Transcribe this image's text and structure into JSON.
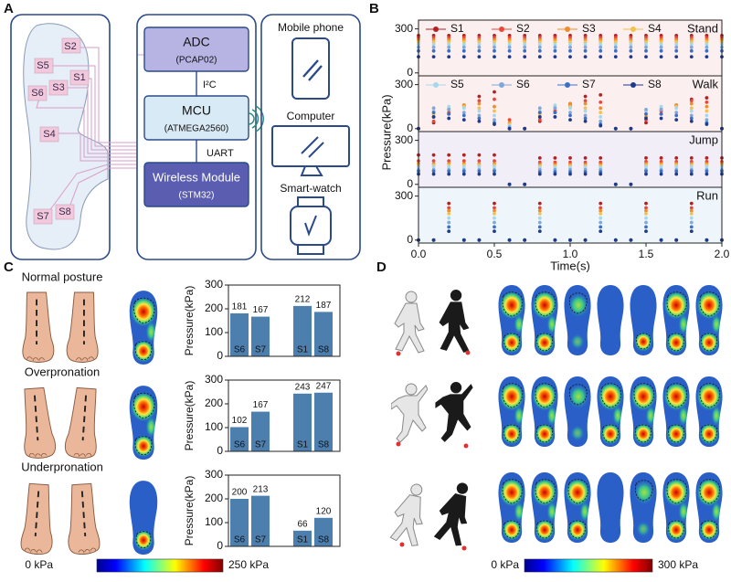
{
  "panels": {
    "a": "A",
    "b": "B",
    "c": "C",
    "d": "D"
  },
  "insole": {
    "sensors": [
      "S1",
      "S2",
      "S3",
      "S4",
      "S5",
      "S6",
      "S7",
      "S8"
    ]
  },
  "system": {
    "adc": "ADC",
    "adc_chip": "(PCAP02)",
    "i2c": "I²C",
    "mcu": "MCU",
    "mcu_chip": "(ATMEGA2560)",
    "uart": "UART",
    "wireless": "Wireless Module",
    "wireless_chip": "(STM32)"
  },
  "devices": [
    "Mobile phone",
    "Computer",
    "Smart-watch"
  ],
  "pressure_plot": {
    "x_label": "Time(s)",
    "y_label": "Pressure(kPa)",
    "xlim": [
      0,
      2
    ],
    "xticks": [
      {
        "value": 0,
        "label": "0.0"
      },
      {
        "value": 0.5,
        "label": "0.5"
      },
      {
        "value": 1,
        "label": "1.0"
      },
      {
        "value": 1.5,
        "label": "1.5"
      },
      {
        "value": 2,
        "label": "2.0"
      }
    ],
    "ylim": [
      -20,
      360
    ],
    "yticks": [
      0,
      300
    ],
    "x": [
      0,
      0.1,
      0.2,
      0.3,
      0.4,
      0.5,
      0.6,
      0.7,
      0.8,
      0.9,
      1.0,
      1.1,
      1.2,
      1.3,
      1.4,
      1.5,
      1.6,
      1.7,
      1.8,
      1.9,
      2.0
    ],
    "legend": [
      {
        "name": "S1",
        "color": "#b22222"
      },
      {
        "name": "S2",
        "color": "#e8483a"
      },
      {
        "name": "S3",
        "color": "#f08c2a"
      },
      {
        "name": "S4",
        "color": "#f2c14e"
      },
      {
        "name": "S5",
        "color": "#a6d8ec"
      },
      {
        "name": "S6",
        "color": "#7ea8da"
      },
      {
        "name": "S7",
        "color": "#3b70c6"
      },
      {
        "name": "S8",
        "color": "#1e3a8a"
      }
    ],
    "subplots": [
      {
        "label": "Stand",
        "values": [
          [
            255,
            255,
            255,
            255,
            255,
            255,
            255,
            255,
            255,
            255,
            255,
            255,
            255,
            255,
            255,
            255,
            255,
            255,
            255,
            255,
            255
          ],
          [
            240,
            240,
            240,
            240,
            240,
            240,
            240,
            240,
            240,
            240,
            240,
            240,
            240,
            240,
            240,
            240,
            240,
            240,
            240,
            240,
            240
          ],
          [
            225,
            225,
            225,
            225,
            225,
            225,
            225,
            225,
            225,
            225,
            225,
            225,
            225,
            225,
            225,
            225,
            225,
            225,
            225,
            225,
            225
          ],
          [
            210,
            210,
            210,
            210,
            210,
            210,
            210,
            210,
            210,
            210,
            210,
            210,
            210,
            210,
            210,
            210,
            210,
            210,
            210,
            210,
            210
          ],
          [
            195,
            195,
            195,
            195,
            195,
            195,
            195,
            195,
            195,
            195,
            195,
            195,
            195,
            195,
            195,
            195,
            195,
            195,
            195,
            195,
            195
          ],
          [
            175,
            175,
            175,
            175,
            175,
            175,
            175,
            175,
            175,
            175,
            175,
            175,
            175,
            175,
            175,
            175,
            175,
            175,
            175,
            175,
            175
          ],
          [
            150,
            150,
            150,
            150,
            150,
            150,
            150,
            150,
            150,
            150,
            150,
            150,
            150,
            150,
            150,
            150,
            150,
            150,
            150,
            150,
            150
          ],
          [
            110,
            110,
            110,
            110,
            110,
            110,
            110,
            110,
            110,
            110,
            110,
            110,
            110,
            110,
            110,
            110,
            110,
            110,
            110,
            110,
            110
          ]
        ]
      },
      {
        "label": "Walk",
        "values": [
          [
            0,
            40,
            100,
            160,
            220,
            250,
            0,
            0,
            50,
            110,
            170,
            220,
            230,
            0,
            0,
            40,
            100,
            160,
            200,
            210,
            0
          ],
          [
            0,
            50,
            110,
            150,
            190,
            200,
            60,
            0,
            60,
            120,
            160,
            190,
            180,
            0,
            0,
            60,
            120,
            160,
            190,
            180,
            0
          ],
          [
            0,
            80,
            130,
            160,
            170,
            150,
            40,
            0,
            80,
            140,
            170,
            170,
            140,
            0,
            0,
            80,
            130,
            160,
            170,
            150,
            0
          ],
          [
            0,
            100,
            140,
            150,
            140,
            120,
            30,
            0,
            100,
            150,
            150,
            140,
            110,
            0,
            0,
            100,
            140,
            150,
            140,
            120,
            0
          ],
          [
            0,
            120,
            150,
            140,
            120,
            90,
            20,
            0,
            120,
            160,
            140,
            120,
            80,
            0,
            0,
            120,
            150,
            140,
            120,
            90,
            0
          ],
          [
            0,
            140,
            130,
            110,
            90,
            60,
            10,
            0,
            140,
            140,
            110,
            90,
            50,
            0,
            0,
            130,
            130,
            110,
            90,
            60,
            0
          ],
          [
            0,
            110,
            100,
            90,
            70,
            40,
            0,
            0,
            110,
            110,
            90,
            70,
            30,
            0,
            0,
            100,
            100,
            90,
            70,
            40,
            0
          ],
          [
            0,
            80,
            70,
            60,
            50,
            30,
            0,
            0,
            80,
            80,
            60,
            50,
            20,
            0,
            0,
            70,
            70,
            60,
            50,
            30,
            0
          ]
        ]
      },
      {
        "label": "Jump",
        "values": [
          [
            200,
            200,
            200,
            200,
            200,
            200,
            0,
            0,
            180,
            180,
            180,
            180,
            180,
            0,
            0,
            180,
            180,
            180,
            180,
            180,
            180
          ],
          [
            160,
            160,
            160,
            160,
            160,
            160,
            0,
            0,
            150,
            150,
            150,
            150,
            150,
            0,
            0,
            155,
            155,
            155,
            155,
            155,
            155
          ],
          [
            140,
            140,
            140,
            140,
            140,
            140,
            0,
            0,
            135,
            135,
            135,
            135,
            135,
            0,
            0,
            140,
            140,
            140,
            140,
            140,
            140
          ],
          [
            130,
            130,
            130,
            130,
            130,
            130,
            0,
            0,
            125,
            125,
            125,
            125,
            125,
            0,
            0,
            130,
            130,
            130,
            130,
            130,
            130
          ],
          [
            120,
            120,
            120,
            120,
            120,
            120,
            0,
            0,
            115,
            115,
            115,
            115,
            115,
            0,
            0,
            120,
            120,
            120,
            120,
            120,
            120
          ],
          [
            100,
            100,
            100,
            100,
            100,
            100,
            0,
            0,
            100,
            100,
            100,
            100,
            100,
            0,
            0,
            100,
            100,
            100,
            100,
            100,
            100
          ],
          [
            90,
            90,
            90,
            90,
            90,
            90,
            0,
            0,
            85,
            85,
            85,
            85,
            85,
            0,
            0,
            90,
            90,
            90,
            90,
            90,
            90
          ],
          [
            70,
            70,
            70,
            70,
            70,
            70,
            0,
            0,
            70,
            70,
            70,
            70,
            70,
            0,
            0,
            70,
            70,
            70,
            70,
            70,
            70
          ]
        ]
      },
      {
        "label": "Run",
        "values": [
          [
            0,
            0,
            250,
            0,
            0,
            250,
            0,
            0,
            250,
            0,
            0,
            0,
            250,
            0,
            0,
            250,
            0,
            0,
            250,
            0,
            0
          ],
          [
            0,
            0,
            220,
            0,
            0,
            220,
            0,
            0,
            220,
            0,
            0,
            0,
            220,
            0,
            0,
            220,
            0,
            0,
            220,
            0,
            0
          ],
          [
            0,
            0,
            200,
            0,
            0,
            200,
            0,
            0,
            200,
            0,
            0,
            0,
            200,
            0,
            0,
            200,
            0,
            0,
            200,
            0,
            0
          ],
          [
            0,
            0,
            180,
            0,
            0,
            180,
            0,
            0,
            180,
            0,
            0,
            0,
            180,
            0,
            0,
            180,
            0,
            0,
            180,
            0,
            0
          ],
          [
            0,
            0,
            150,
            0,
            0,
            150,
            0,
            0,
            150,
            0,
            0,
            0,
            150,
            0,
            0,
            150,
            0,
            0,
            150,
            0,
            0
          ],
          [
            0,
            0,
            120,
            0,
            0,
            120,
            0,
            0,
            120,
            0,
            0,
            0,
            120,
            0,
            0,
            120,
            0,
            0,
            120,
            0,
            0
          ],
          [
            0,
            0,
            90,
            0,
            0,
            90,
            0,
            0,
            90,
            0,
            0,
            0,
            90,
            0,
            0,
            90,
            0,
            0,
            90,
            0,
            0
          ],
          [
            0,
            0,
            60,
            0,
            0,
            60,
            0,
            0,
            60,
            0,
            0,
            0,
            60,
            0,
            0,
            60,
            0,
            0,
            60,
            0,
            0
          ]
        ]
      }
    ]
  },
  "posture": {
    "y_label": "Pressure(kPa)",
    "ylim": [
      0,
      300
    ],
    "yticks": [
      0,
      100,
      200,
      300
    ],
    "bar_color": "#4d7fae",
    "rows": [
      {
        "title": "Normal posture",
        "sensors": [
          "S6",
          "S7",
          "S1",
          "S8"
        ],
        "values": [
          181,
          167,
          212,
          187
        ]
      },
      {
        "title": "Overpronation",
        "sensors": [
          "S6",
          "S7",
          "S1",
          "S8"
        ],
        "values": [
          102,
          167,
          243,
          247
        ]
      },
      {
        "title": "Underpronation",
        "sensors": [
          "S6",
          "S7",
          "S1",
          "S8"
        ],
        "values": [
          200,
          213,
          66,
          120
        ]
      }
    ],
    "colorbar": [
      "0 kPa",
      "250 kPa"
    ]
  },
  "gait": {
    "colorbar": [
      "0 kPa",
      "300 kPa"
    ]
  }
}
